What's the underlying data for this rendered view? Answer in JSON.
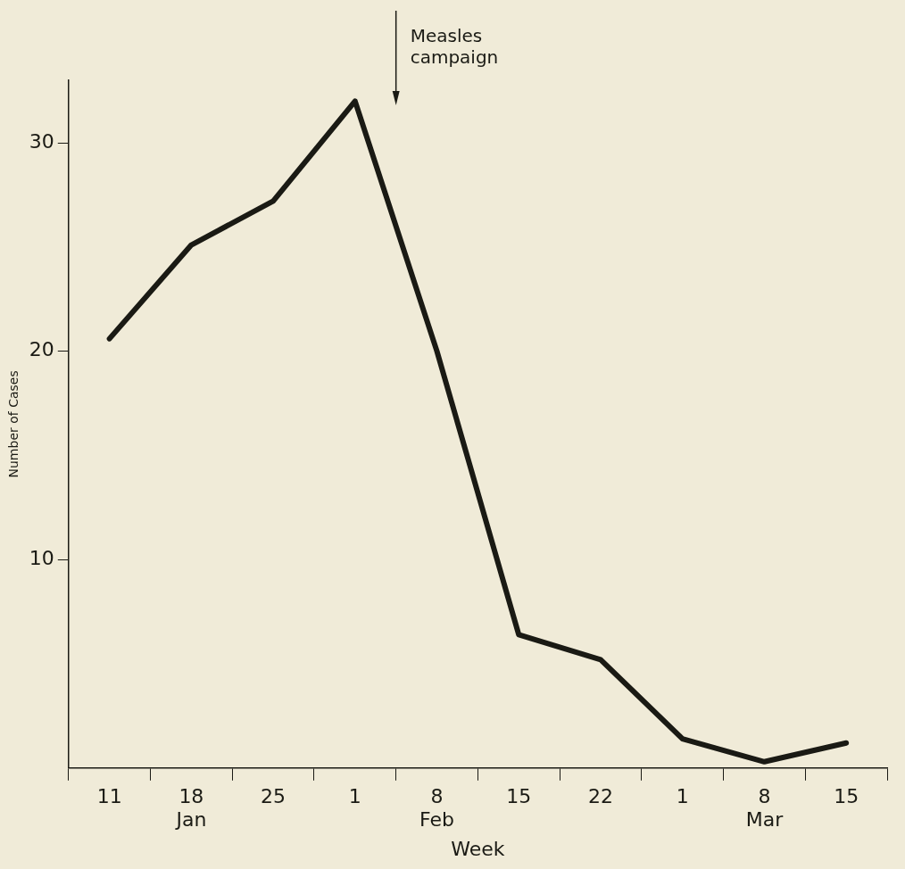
{
  "chart_data": {
    "type": "line",
    "xlabel": "Week",
    "ylabel": "Number of Cases",
    "categories": [
      "11",
      "18\nJan",
      "25",
      "1",
      "8\nFeb",
      "15",
      "22",
      "1",
      "8\nMar",
      "15"
    ],
    "series": [
      {
        "color": "#1a1a14",
        "values": [
          20.6,
          25.1,
          27.2,
          32,
          20,
          6.4,
          5.2,
          1.4,
          0.3,
          1.2
        ]
      }
    ],
    "ylim": [
      0,
      33
    ],
    "yticks": [
      10,
      20,
      30
    ],
    "annotations": [
      "Measles campaign"
    ],
    "grid": false,
    "legend": false,
    "marker": "none",
    "line_style": "solid"
  }
}
